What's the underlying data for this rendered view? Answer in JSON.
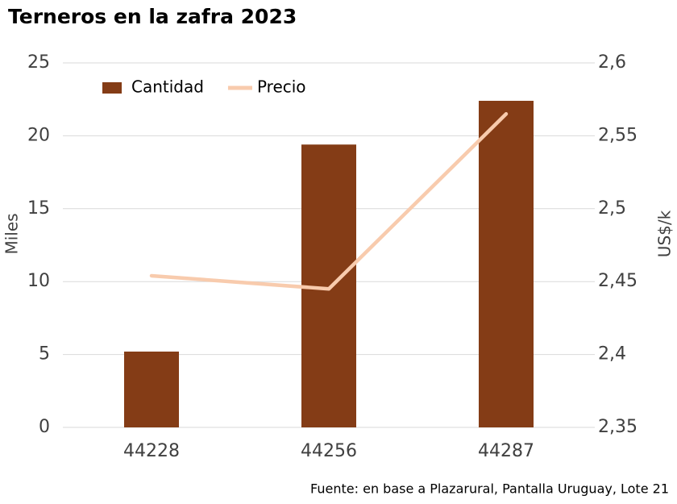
{
  "chart_data": {
    "type": "bar",
    "title": "Terneros en la zafra 2023",
    "categories": [
      "44228",
      "44256",
      "44287"
    ],
    "series": [
      {
        "name": "Cantidad",
        "type": "bar",
        "color": "#843c16",
        "values": [
          5.2,
          19.4,
          22.4
        ]
      },
      {
        "name": "Precio",
        "type": "line",
        "axis": "y2",
        "color": "#f8cbad",
        "values": [
          2.454,
          2.445,
          2.565
        ]
      }
    ],
    "ylabel": "Miles",
    "y2label": "US$/k",
    "ylim": [
      0,
      25
    ],
    "yticks": [
      0,
      5,
      10,
      15,
      20,
      25
    ],
    "y2lim": [
      2.35,
      2.6
    ],
    "y2ticks": [
      {
        "value": 2.35,
        "label": "2,35"
      },
      {
        "value": 2.4,
        "label": "2,4"
      },
      {
        "value": 2.45,
        "label": "2,45"
      },
      {
        "value": 2.5,
        "label": "2,5"
      },
      {
        "value": 2.55,
        "label": "2,55"
      },
      {
        "value": 2.6,
        "label": "2,6"
      }
    ],
    "grid": true,
    "legend": "top-left",
    "source": "Fuente: en base a Plazarural, Pantalla Uruguay, Lote 21"
  }
}
